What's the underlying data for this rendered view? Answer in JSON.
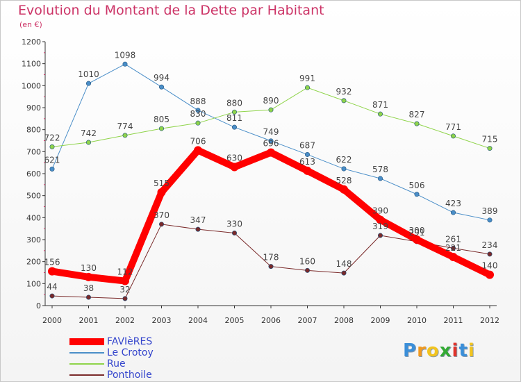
{
  "chart_data": {
    "type": "line",
    "title": "Evolution du Montant de la Dette par Habitant",
    "subtitle": "(en €)",
    "x": [
      "2000",
      "2001",
      "2002",
      "2003",
      "2004",
      "2005",
      "2006",
      "2007",
      "2008",
      "2009",
      "2010",
      "2011",
      "2012"
    ],
    "ylim": [
      0,
      1200
    ],
    "yticks": [
      0,
      100,
      200,
      300,
      400,
      500,
      600,
      700,
      800,
      900,
      1000,
      1100,
      1200
    ],
    "grid": false,
    "legend_position": "bottom-left",
    "series": [
      {
        "name": "Le Crotoy",
        "color": "#4a8ec8",
        "width": 1,
        "values": [
          621,
          1010,
          1098,
          994,
          888,
          811,
          749,
          687,
          622,
          578,
          506,
          423,
          389
        ],
        "labels": [
          "621",
          "1010",
          "1098",
          "994",
          "888",
          "811",
          "749",
          "687",
          "622",
          "578",
          "506",
          "423",
          "389"
        ]
      },
      {
        "name": "Rue",
        "color": "#8fd44a",
        "width": 1,
        "values": [
          722,
          742,
          774,
          805,
          830,
          880,
          890,
          991,
          932,
          871,
          827,
          771,
          715
        ],
        "labels": [
          "722",
          "742",
          "774",
          "805",
          "830",
          "880",
          "890",
          "991",
          "932",
          "871",
          "827",
          "771",
          "715"
        ]
      },
      {
        "name": "Ponthoile",
        "color": "#7a2a2a",
        "width": 1,
        "values": [
          44,
          38,
          32,
          370,
          347,
          330,
          178,
          160,
          148,
          319,
          291,
          261,
          234
        ],
        "labels": [
          "44",
          "38",
          "32",
          "370",
          "347",
          "330",
          "178",
          "160",
          "148",
          "319",
          "291",
          "261",
          "234"
        ]
      },
      {
        "name": "FAVIèRES",
        "color": "#ff0000",
        "width": 10,
        "values": [
          156,
          130,
          112,
          515,
          706,
          630,
          696,
          613,
          528,
          390,
          300,
          221,
          140
        ],
        "labels": [
          "156",
          "130",
          "112",
          "515",
          "706",
          "630",
          "696",
          "613",
          "528",
          "390",
          "300",
          "221",
          "140"
        ]
      }
    ],
    "legend_order": [
      "FAVIèRES",
      "Le Crotoy",
      "Rue",
      "Ponthoile"
    ]
  },
  "logo": {
    "letters": [
      "P",
      "r",
      "o",
      "x",
      "i",
      "t",
      "i"
    ],
    "colors": [
      "#3b8fd9",
      "#f29a1f",
      "#f2c41f",
      "#33aa33",
      "#e0342c",
      "#3b8fd9",
      "#f2c41f"
    ]
  }
}
